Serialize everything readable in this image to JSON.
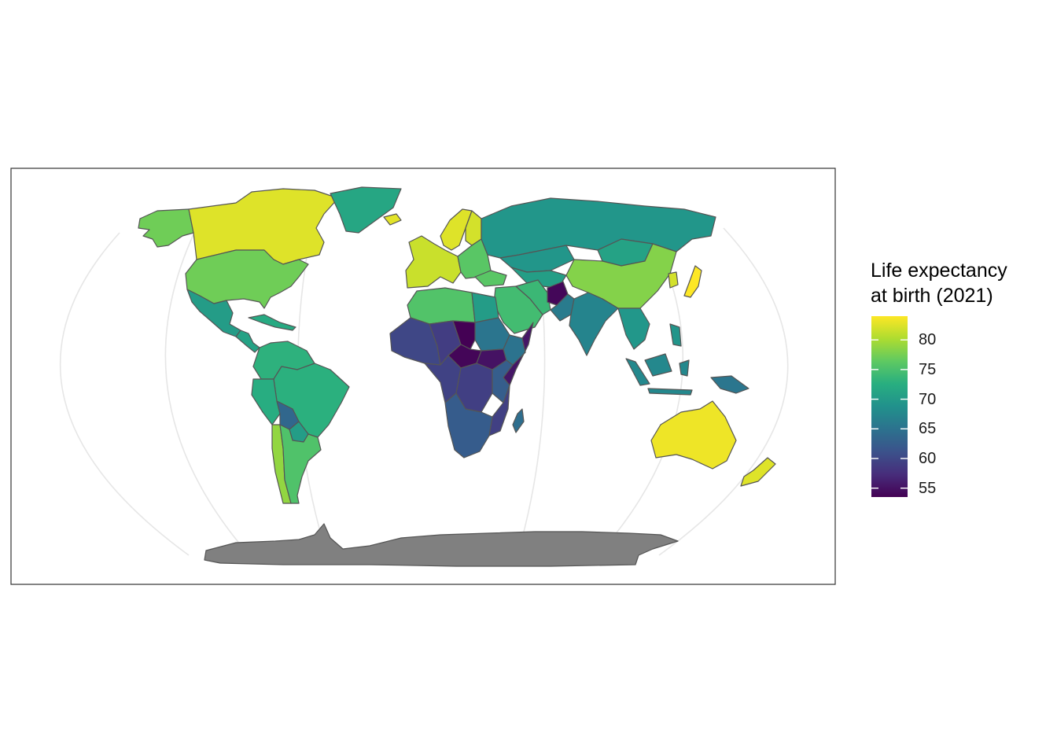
{
  "map": {
    "projection": "Robinson-like",
    "missing_color": "#808080",
    "border_color": "#555555",
    "graticule_color": "#e6e6e6"
  },
  "legend": {
    "title_line1": "Life expectancy",
    "title_line2": "at birth (2021)",
    "ticks": [
      "80",
      "75",
      "70",
      "65",
      "60",
      "55"
    ],
    "tick_values": [
      80,
      75,
      70,
      65,
      60,
      55
    ],
    "range": [
      53.5,
      84
    ],
    "colors": [
      "#440154",
      "#472d7b",
      "#3b528b",
      "#2c728e",
      "#21918c",
      "#28ae80",
      "#5ec962",
      "#addc30",
      "#fde725"
    ]
  },
  "regions": [
    {
      "name": "Canada",
      "value": 82.5
    },
    {
      "name": "Alaska (United States)",
      "value": 77.2
    },
    {
      "name": "United States",
      "value": 77.2
    },
    {
      "name": "Greenland",
      "value": 71.5
    },
    {
      "name": "Mexico",
      "value": 70.2
    },
    {
      "name": "Central America",
      "value": 71
    },
    {
      "name": "Caribbean",
      "value": 72
    },
    {
      "name": "Northern South America",
      "value": 73
    },
    {
      "name": "Brazil",
      "value": 72.8
    },
    {
      "name": "Peru",
      "value": 72.4
    },
    {
      "name": "Bolivia",
      "value": 63.6
    },
    {
      "name": "Paraguay",
      "value": 70.3
    },
    {
      "name": "Chile",
      "value": 78.9
    },
    {
      "name": "Argentina",
      "value": 75.4
    },
    {
      "name": "Western Europe",
      "value": 81.5
    },
    {
      "name": "Scandinavia",
      "value": 82.5
    },
    {
      "name": "Iceland",
      "value": 82.7
    },
    {
      "name": "Finland",
      "value": 82
    },
    {
      "name": "Eastern Europe",
      "value": 76
    },
    {
      "name": "Russia",
      "value": 69.4
    },
    {
      "name": "Kazakhstan",
      "value": 69.4
    },
    {
      "name": "Central Asia",
      "value": 70.5
    },
    {
      "name": "Mongolia",
      "value": 71
    },
    {
      "name": "China",
      "value": 78.2
    },
    {
      "name": "Japan",
      "value": 84.5
    },
    {
      "name": "Korea",
      "value": 82
    },
    {
      "name": "Turkey",
      "value": 76
    },
    {
      "name": "Middle East",
      "value": 74.5
    },
    {
      "name": "Iran",
      "value": 73.9
    },
    {
      "name": "Afghanistan",
      "value": 54
    },
    {
      "name": "Pakistan",
      "value": 66.1
    },
    {
      "name": "India",
      "value": 67.2
    },
    {
      "name": "Southeast Asia",
      "value": 69.5
    },
    {
      "name": "Indonesia",
      "value": 67.6
    },
    {
      "name": "Papua New Guinea",
      "value": 65.4
    },
    {
      "name": "Philippines",
      "value": 69.3
    },
    {
      "name": "Australia",
      "value": 83.3
    },
    {
      "name": "New Zealand",
      "value": 82.5
    },
    {
      "name": "North Africa",
      "value": 75.5
    },
    {
      "name": "Egypt",
      "value": 70.2
    },
    {
      "name": "West Africa",
      "value": 60
    },
    {
      "name": "Sahel",
      "value": 59
    },
    {
      "name": "Sudan",
      "value": 65.3
    },
    {
      "name": "Chad",
      "value": 52.5
    },
    {
      "name": "Central African Republic",
      "value": 53.9
    },
    {
      "name": "South Sudan",
      "value": 55
    },
    {
      "name": "Ethiopia",
      "value": 65
    },
    {
      "name": "Somalia",
      "value": 55.3
    },
    {
      "name": "Horn of Africa coast",
      "value": 70
    },
    {
      "name": "Central Africa",
      "value": 59.5
    },
    {
      "name": "Democratic Republic of the Congo",
      "value": 59.2
    },
    {
      "name": "East Africa",
      "value": 62.5
    },
    {
      "name": "Mozambique",
      "value": 59.3
    },
    {
      "name": "Southern Africa",
      "value": 62.3
    },
    {
      "name": "Madagascar",
      "value": 64.5
    },
    {
      "name": "Antarctica",
      "value": null
    }
  ]
}
